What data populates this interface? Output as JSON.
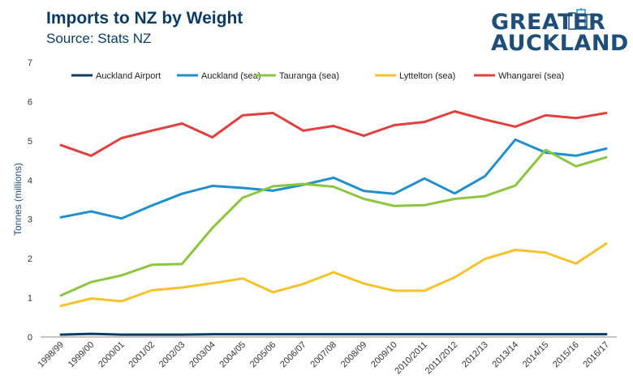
{
  "header": {
    "title": "Imports to NZ by Weight",
    "subtitle": "Source: Stats NZ"
  },
  "logo": {
    "line1": "GREATER",
    "line2": "AUCKLAND",
    "color": "#1f4e79"
  },
  "chart_data": {
    "type": "line",
    "title": "Imports to NZ by Weight",
    "xlabel": "",
    "ylabel": "Tonnes (millions)",
    "ylim": [
      0,
      7
    ],
    "yticks": [
      0,
      1,
      2,
      3,
      4,
      5,
      6,
      7
    ],
    "grid": false,
    "legend_position": "top",
    "categories": [
      "1998/99",
      "1999/00",
      "2000/01",
      "2001/02",
      "2002/03",
      "2003/04",
      "2004/05",
      "2005/06",
      "2006/07",
      "2007/08",
      "2008/09",
      "2009/10",
      "2010/2011",
      "2011/2012",
      "2012/13",
      "2013/14",
      "2014/15",
      "2015/16",
      "2016/17"
    ],
    "series": [
      {
        "name": "Auckland Airport",
        "color": "#0c3c66",
        "values": [
          0.06,
          0.08,
          0.06,
          0.06,
          0.06,
          0.07,
          0.07,
          0.07,
          0.07,
          0.07,
          0.07,
          0.07,
          0.07,
          0.07,
          0.07,
          0.07,
          0.07,
          0.07,
          0.07
        ]
      },
      {
        "name": "Auckland (sea)",
        "color": "#1f8fcf",
        "values": [
          3.05,
          3.2,
          3.02,
          3.35,
          3.65,
          3.85,
          3.8,
          3.73,
          3.88,
          4.06,
          3.72,
          3.65,
          4.04,
          3.66,
          4.1,
          5.03,
          4.7,
          4.62,
          4.8
        ]
      },
      {
        "name": "Tauranga (sea)",
        "color": "#8cc540",
        "values": [
          1.06,
          1.4,
          1.57,
          1.84,
          1.86,
          2.78,
          3.55,
          3.84,
          3.9,
          3.83,
          3.52,
          3.34,
          3.36,
          3.52,
          3.59,
          3.86,
          4.77,
          4.35,
          4.58
        ]
      },
      {
        "name": "Lyttelton (sea)",
        "color": "#f6c22b",
        "values": [
          0.79,
          0.98,
          0.91,
          1.19,
          1.26,
          1.37,
          1.49,
          1.14,
          1.35,
          1.65,
          1.36,
          1.18,
          1.18,
          1.52,
          1.99,
          2.22,
          2.15,
          1.87,
          2.38
        ]
      },
      {
        "name": "Whangarei (sea)",
        "color": "#e04040",
        "values": [
          4.89,
          4.62,
          5.07,
          5.26,
          5.44,
          5.09,
          5.65,
          5.71,
          5.26,
          5.38,
          5.13,
          5.4,
          5.48,
          5.75,
          5.54,
          5.36,
          5.65,
          5.58,
          5.71
        ]
      }
    ]
  }
}
